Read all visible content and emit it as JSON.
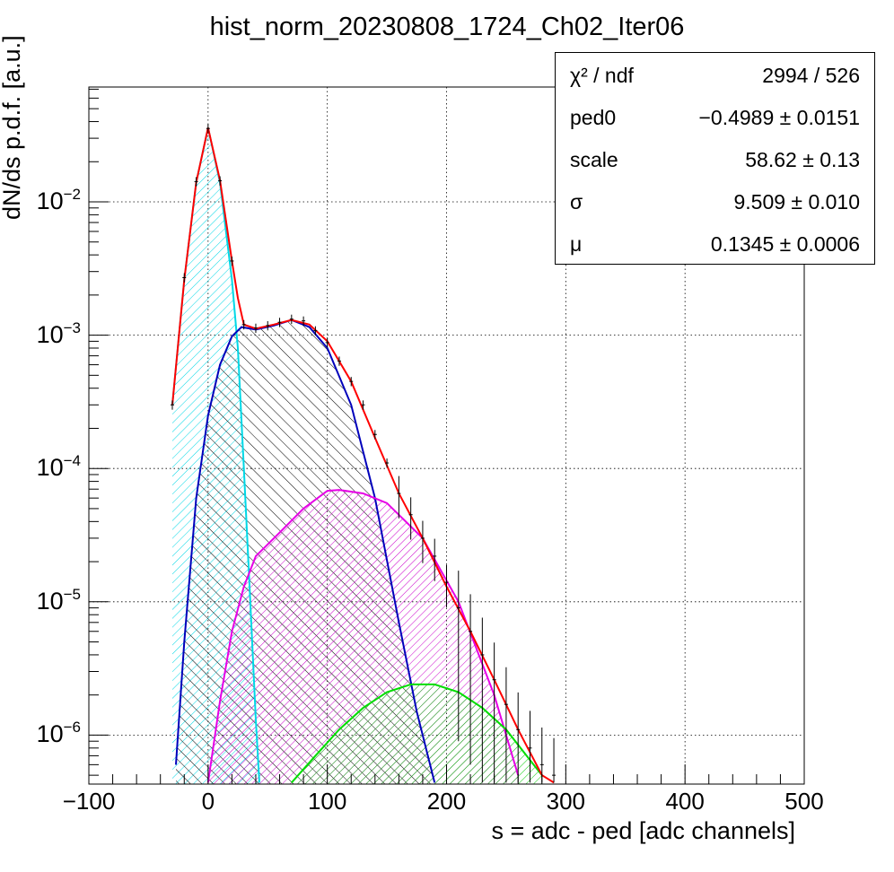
{
  "chart_data": {
    "type": "histogram-fit",
    "title": "hist_norm_20230808_1724_Ch02_Iter06",
    "xlabel": "s = adc - ped [adc channels]",
    "ylabel": "dN/ds p.d.f. [a.u.]",
    "xlim": [
      -100,
      500
    ],
    "ylim": [
      4.4e-07,
      0.07
    ],
    "yscale": "log",
    "grid": true,
    "x_ticks": [
      "−100",
      "0",
      "100",
      "200",
      "300",
      "400",
      "500"
    ],
    "y_ticks": [
      {
        "base": "10",
        "exp": "−2"
      },
      {
        "base": "10",
        "exp": "−3"
      },
      {
        "base": "10",
        "exp": "−4"
      },
      {
        "base": "10",
        "exp": "−5"
      },
      {
        "base": "10",
        "exp": "−6"
      }
    ],
    "components": [
      {
        "color": "#00d8e6",
        "hatch": "cyan",
        "x": [
          -30,
          -20,
          -10,
          0,
          10,
          20,
          25,
          30,
          35,
          40,
          43
        ],
        "y": [
          0.0003,
          0.0026,
          0.0139,
          0.036,
          0.0139,
          0.0026,
          0.0008,
          0.0001,
          1.2e-05,
          1.3e-06,
          4.4e-07
        ]
      },
      {
        "color": "#0000bb",
        "hatch": "black",
        "x": [
          -27,
          -20,
          -10,
          0,
          10,
          20,
          28,
          40,
          55,
          70,
          85,
          100,
          120,
          140,
          160,
          175,
          190
        ],
        "y": [
          6e-07,
          5e-06,
          6e-05,
          0.00025,
          0.0006,
          0.00098,
          0.00115,
          0.0011,
          0.00118,
          0.0013,
          0.00115,
          0.0008,
          0.0003,
          6e-05,
          7e-06,
          1.5e-06,
          4.4e-07
        ]
      },
      {
        "color": "#e600e6",
        "hatch": "magenta",
        "x": [
          0,
          10,
          20,
          30,
          40,
          60,
          80,
          100,
          110,
          130,
          150,
          180,
          210,
          240,
          260
        ],
        "y": [
          4.4e-07,
          1.8e-06,
          6e-06,
          1.3e-05,
          2.2e-05,
          3.3e-05,
          5e-05,
          6.8e-05,
          6.9e-05,
          6.5e-05,
          5.5e-05,
          3e-05,
          1e-05,
          2e-06,
          5e-07
        ]
      },
      {
        "color": "#00dd00",
        "hatch": "green",
        "x": [
          70,
          90,
          110,
          130,
          150,
          170,
          190,
          210,
          230,
          250,
          270,
          280
        ],
        "y": [
          4.4e-07,
          7e-07,
          1.1e-06,
          1.6e-06,
          2.1e-06,
          2.4e-06,
          2.4e-06,
          2.1e-06,
          1.6e-06,
          1.1e-06,
          6.5e-07,
          5e-07
        ]
      }
    ],
    "total_fit": {
      "color": "#ff0000",
      "x": [
        -30,
        -20,
        -10,
        0,
        10,
        20,
        25,
        30,
        40,
        55,
        70,
        85,
        100,
        120,
        140,
        160,
        180,
        200,
        220,
        240,
        260,
        280,
        290
      ],
      "y": [
        0.0003,
        0.0026,
        0.014,
        0.036,
        0.0145,
        0.0036,
        0.0019,
        0.0012,
        0.00112,
        0.0012,
        0.0013,
        0.0012,
        0.0009,
        0.00045,
        0.00017,
        6.5e-05,
        3e-05,
        1.3e-05,
        6e-06,
        2.6e-06,
        1.1e-06,
        5e-07,
        4.4e-07
      ]
    },
    "data_points": {
      "color": "#000000",
      "x": [
        -30,
        -20,
        -10,
        0,
        10,
        20,
        30,
        40,
        50,
        60,
        70,
        80,
        90,
        100,
        110,
        120,
        130,
        140,
        150,
        160,
        170,
        180,
        190,
        200,
        210,
        220,
        230,
        240,
        250,
        260,
        270,
        280,
        290
      ],
      "y": [
        0.0003,
        0.0027,
        0.0142,
        0.0355,
        0.0144,
        0.0036,
        0.0012,
        0.00113,
        0.00118,
        0.00125,
        0.00132,
        0.00128,
        0.00108,
        0.00088,
        0.00064,
        0.00045,
        0.0003,
        0.00018,
        0.00011,
        6.5e-05,
        4.5e-05,
        3e-05,
        2.2e-05,
        1.4e-05,
        9e-06,
        6e-06,
        4e-06,
        2.6e-06,
        1.7e-06,
        1.1e-06,
        8e-07,
        6e-07,
        5e-07
      ]
    }
  },
  "stats": [
    {
      "name": "χ² / ndf",
      "value": "2994 / 526"
    },
    {
      "name": "ped0",
      "value": "−0.4989 ± 0.0151"
    },
    {
      "name": "scale",
      "value": "58.62 ± 0.13"
    },
    {
      "name": "σ",
      "value": "9.509 ± 0.010"
    },
    {
      "name": "μ",
      "value": "0.1345 ± 0.0006"
    }
  ]
}
